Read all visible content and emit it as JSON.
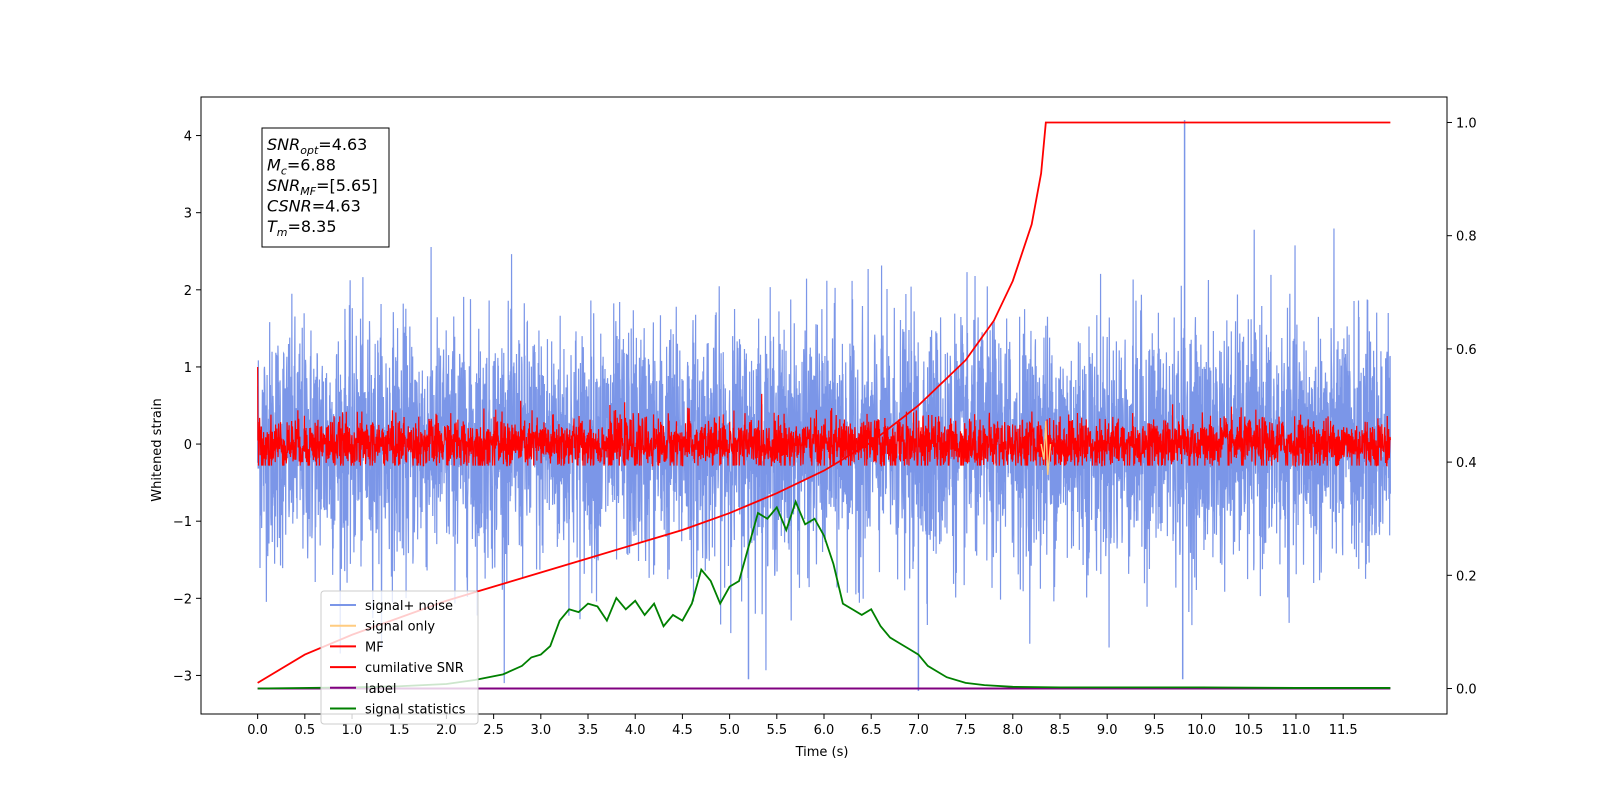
{
  "chart_data": {
    "type": "line",
    "xlabel": "Time (s)",
    "ylabel_left": "Whitened strain",
    "ylabel_right": "",
    "xlim": [
      -0.6,
      12.6
    ],
    "ylim_left": [
      -3.5,
      4.5
    ],
    "ylim_right": [
      -0.045,
      1.045
    ],
    "x_ticks": [
      0.0,
      0.5,
      1.0,
      1.5,
      2.0,
      2.5,
      3.0,
      3.5,
      4.0,
      4.5,
      5.0,
      5.5,
      6.0,
      6.5,
      7.0,
      7.5,
      8.0,
      8.5,
      9.0,
      9.5,
      10.0,
      10.5,
      11.0,
      11.5
    ],
    "x_tick_labels": [
      "0.0",
      "0.5",
      "1.0",
      "1.5",
      "2.0",
      "2.5",
      "3.0",
      "3.5",
      "4.0",
      "4.5",
      "5.0",
      "5.5",
      "6.0",
      "6.5",
      "7.0",
      "7.5",
      "8.0",
      "8.5",
      "9.0",
      "9.5",
      "10.0",
      "10.5",
      "11.0",
      "11.5"
    ],
    "y_left_ticks": [
      -3,
      -2,
      -1,
      0,
      1,
      2,
      3,
      4
    ],
    "y_left_tick_labels": [
      "−3",
      "−2",
      "−1",
      "0",
      "1",
      "2",
      "3",
      "4"
    ],
    "y_right_ticks": [
      0.0,
      0.2,
      0.4,
      0.6,
      0.8,
      1.0
    ],
    "y_right_tick_labels": [
      "0.0",
      "0.2",
      "0.4",
      "0.6",
      "0.8",
      "1.0"
    ],
    "legend_position": "lower-left",
    "series": [
      {
        "name": "signal+ noise",
        "axis": "left",
        "color": "#7b96e8",
        "description": "noise band roughly mean 0 with amplitude ~±2 over 0–12 s",
        "amplitude_range": [
          -3.2,
          4.2
        ],
        "spikes": [
          [
            9.82,
            4.2
          ],
          [
            9.8,
            -3.05
          ],
          [
            7.0,
            -3.2
          ],
          [
            5.2,
            -3.05
          ]
        ]
      },
      {
        "name": "signal only",
        "axis": "left",
        "color": "#ffcc80",
        "x": [
          8.3,
          8.33,
          8.35,
          8.37,
          8.4
        ],
        "y": [
          0.0,
          -0.2,
          0.3,
          -0.4,
          0.0
        ]
      },
      {
        "name": "MF",
        "axis": "left",
        "color": "#ff0000",
        "description": "matched filter output, noisy band roughly ±0.3 around 0",
        "amplitude_range": [
          -0.3,
          0.7
        ]
      },
      {
        "name": "cumilative SNR",
        "axis": "right",
        "color": "#ff0000",
        "x": [
          0.0,
          0.5,
          1.0,
          1.5,
          2.0,
          2.5,
          3.0,
          3.5,
          4.0,
          4.5,
          5.0,
          5.5,
          6.0,
          6.5,
          7.0,
          7.5,
          7.8,
          8.0,
          8.2,
          8.3,
          8.35,
          9.0,
          10.0,
          11.0,
          12.0
        ],
        "y": [
          0.01,
          0.06,
          0.095,
          0.125,
          0.155,
          0.18,
          0.205,
          0.23,
          0.255,
          0.28,
          0.31,
          0.345,
          0.385,
          0.435,
          0.5,
          0.58,
          0.65,
          0.72,
          0.82,
          0.91,
          1.0,
          1.0,
          1.0,
          1.0,
          1.0
        ]
      },
      {
        "name": "label",
        "axis": "right",
        "color": "#800080",
        "x": [
          0.0,
          12.0
        ],
        "y": [
          0.0,
          0.0
        ]
      },
      {
        "name": "signal statistics",
        "axis": "right",
        "color": "#008000",
        "x": [
          0.0,
          1.0,
          1.5,
          2.0,
          2.3,
          2.6,
          2.8,
          2.9,
          3.0,
          3.1,
          3.2,
          3.3,
          3.4,
          3.5,
          3.6,
          3.7,
          3.8,
          3.9,
          4.0,
          4.1,
          4.2,
          4.3,
          4.4,
          4.5,
          4.6,
          4.7,
          4.8,
          4.9,
          5.0,
          5.1,
          5.2,
          5.3,
          5.4,
          5.5,
          5.6,
          5.7,
          5.8,
          5.9,
          6.0,
          6.1,
          6.2,
          6.3,
          6.4,
          6.5,
          6.6,
          6.7,
          6.8,
          6.9,
          7.0,
          7.1,
          7.3,
          7.5,
          7.7,
          8.0,
          8.5,
          9.0,
          9.5,
          10.0,
          11.0,
          12.0
        ],
        "y": [
          0.0,
          0.002,
          0.004,
          0.008,
          0.015,
          0.025,
          0.04,
          0.055,
          0.06,
          0.075,
          0.12,
          0.14,
          0.135,
          0.15,
          0.145,
          0.12,
          0.16,
          0.14,
          0.155,
          0.13,
          0.15,
          0.11,
          0.13,
          0.12,
          0.15,
          0.21,
          0.19,
          0.15,
          0.18,
          0.19,
          0.25,
          0.31,
          0.3,
          0.32,
          0.28,
          0.33,
          0.29,
          0.3,
          0.27,
          0.22,
          0.15,
          0.14,
          0.13,
          0.14,
          0.11,
          0.09,
          0.08,
          0.07,
          0.06,
          0.04,
          0.02,
          0.01,
          0.006,
          0.003,
          0.002,
          0.002,
          0.002,
          0.002,
          0.001,
          0.001
        ]
      }
    ],
    "annotation_lines": [
      {
        "main": "SNR",
        "sub": "opt",
        "rest": "=4.63"
      },
      {
        "main": "M",
        "sub": "c",
        "rest": "=6.88"
      },
      {
        "main": "SNR",
        "sub": "MF",
        "rest": "=[5.65]"
      },
      {
        "main": "CSNR",
        "sub": "",
        "rest": "=4.63"
      },
      {
        "main": "T",
        "sub": "m",
        "rest": "=8.35"
      }
    ]
  }
}
